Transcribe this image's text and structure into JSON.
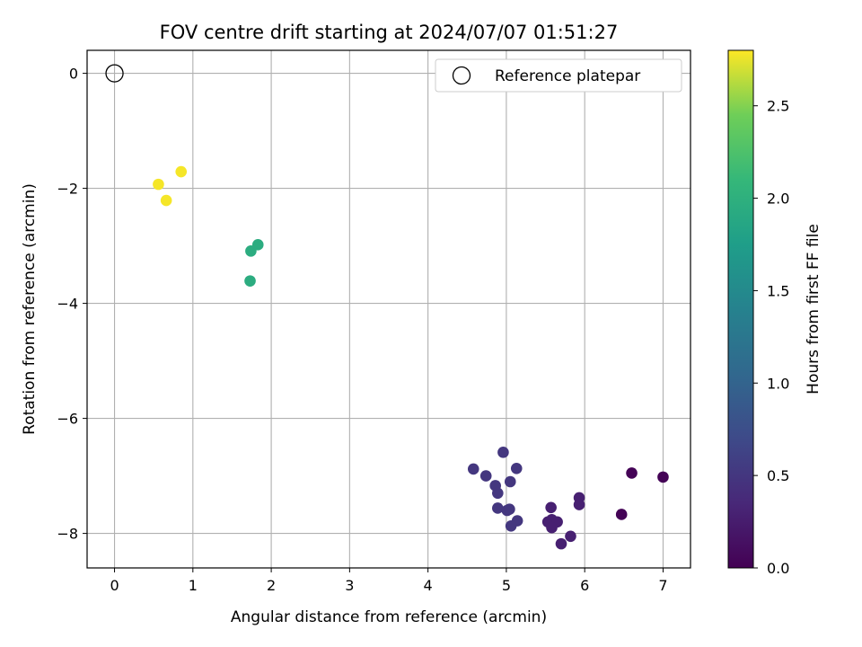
{
  "chart_data": {
    "type": "scatter",
    "title": "FOV centre drift starting at 2024/07/07 01:51:27",
    "xlabel": "Angular distance from reference (arcmin)",
    "ylabel": "Rotation from reference (arcmin)",
    "xlim": [
      -0.35,
      7.35
    ],
    "ylim": [
      -8.6,
      0.4
    ],
    "xticks": [
      0,
      1,
      2,
      3,
      4,
      5,
      6,
      7
    ],
    "yticks": [
      0,
      -2,
      -4,
      -6,
      -8
    ],
    "xtick_labels": [
      "0",
      "1",
      "2",
      "3",
      "4",
      "5",
      "6",
      "7"
    ],
    "ytick_labels": [
      "0",
      "−2",
      "−4",
      "−6",
      "−8"
    ],
    "grid": true,
    "legend": {
      "position": "top-right",
      "entries": [
        {
          "label": "Reference platepar",
          "marker": "open-circle"
        }
      ]
    },
    "reference_point": {
      "x": 0,
      "y": 0
    },
    "colorbar": {
      "label": "Hours from first FF file",
      "range": [
        0.0,
        2.8
      ],
      "ticks": [
        0.0,
        0.5,
        1.0,
        1.5,
        2.0,
        2.5
      ],
      "tick_labels": [
        "0.0",
        "0.5",
        "1.0",
        "1.5",
        "2.0",
        "2.5"
      ],
      "colormap": "viridis"
    },
    "points": [
      {
        "x": 0.56,
        "y": -1.93,
        "c": 2.78
      },
      {
        "x": 0.66,
        "y": -2.21,
        "c": 2.78
      },
      {
        "x": 0.85,
        "y": -1.71,
        "c": 2.78
      },
      {
        "x": 1.74,
        "y": -3.09,
        "c": 1.95
      },
      {
        "x": 1.83,
        "y": -2.98,
        "c": 1.95
      },
      {
        "x": 1.73,
        "y": -3.61,
        "c": 1.95
      },
      {
        "x": 4.58,
        "y": -6.88,
        "c": 0.5
      },
      {
        "x": 4.74,
        "y": -7.0,
        "c": 0.5
      },
      {
        "x": 4.86,
        "y": -7.17,
        "c": 0.5
      },
      {
        "x": 4.89,
        "y": -7.3,
        "c": 0.5
      },
      {
        "x": 4.96,
        "y": -6.59,
        "c": 0.5
      },
      {
        "x": 5.05,
        "y": -7.1,
        "c": 0.5
      },
      {
        "x": 5.13,
        "y": -6.87,
        "c": 0.5
      },
      {
        "x": 4.89,
        "y": -7.56,
        "c": 0.5
      },
      {
        "x": 5.01,
        "y": -7.6,
        "c": 0.5
      },
      {
        "x": 5.04,
        "y": -7.58,
        "c": 0.5
      },
      {
        "x": 5.14,
        "y": -7.78,
        "c": 0.5
      },
      {
        "x": 5.06,
        "y": -7.87,
        "c": 0.5
      },
      {
        "x": 5.57,
        "y": -7.55,
        "c": 0.28
      },
      {
        "x": 5.53,
        "y": -7.8,
        "c": 0.28
      },
      {
        "x": 5.58,
        "y": -7.76,
        "c": 0.28
      },
      {
        "x": 5.65,
        "y": -7.8,
        "c": 0.28
      },
      {
        "x": 5.58,
        "y": -7.9,
        "c": 0.28
      },
      {
        "x": 5.93,
        "y": -7.38,
        "c": 0.28
      },
      {
        "x": 5.93,
        "y": -7.5,
        "c": 0.28
      },
      {
        "x": 5.82,
        "y": -8.05,
        "c": 0.28
      },
      {
        "x": 5.7,
        "y": -8.18,
        "c": 0.28
      },
      {
        "x": 6.47,
        "y": -7.67,
        "c": 0.02
      },
      {
        "x": 6.6,
        "y": -6.95,
        "c": 0.02
      },
      {
        "x": 7.0,
        "y": -7.02,
        "c": 0.02
      }
    ]
  }
}
